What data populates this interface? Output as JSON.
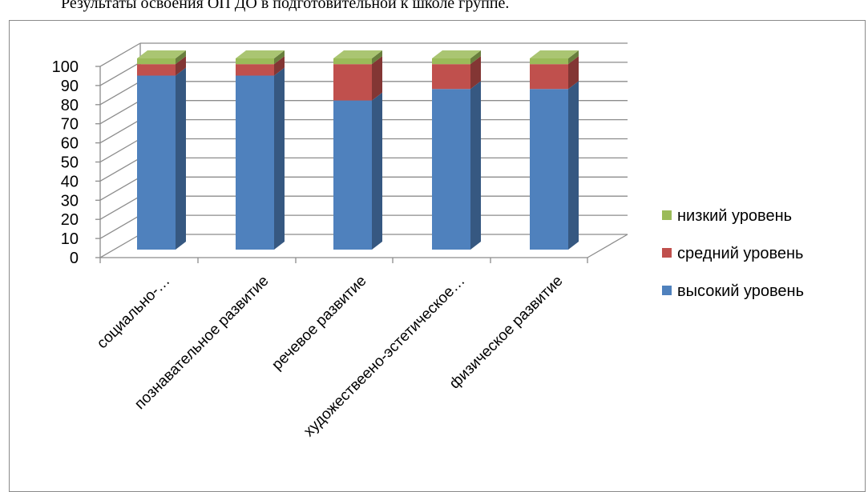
{
  "caption": "Результаты освоения ОП ДО в подготовительной к школе группе.",
  "chart_data": {
    "type": "bar",
    "stacked": true,
    "three_d": true,
    "categories": [
      "социально-…",
      "познавательное развитие",
      "речевое развитие",
      "художествеено-эстетическое…",
      "физическое развитие"
    ],
    "series": [
      {
        "name": "высокий уровень",
        "color": "#4F81BD",
        "values": [
          91,
          91,
          78,
          84,
          84
        ]
      },
      {
        "name": "средний уровень",
        "color": "#C0504D",
        "values": [
          6,
          6,
          19,
          13,
          13
        ]
      },
      {
        "name": "низкий уровень",
        "color": "#9BBB59",
        "values": [
          3,
          3,
          3,
          3,
          3
        ]
      }
    ],
    "ylim": [
      0,
      100
    ],
    "yticks": [
      0,
      10,
      20,
      30,
      40,
      50,
      60,
      70,
      80,
      90,
      100
    ],
    "grid": true,
    "legend": "right"
  }
}
